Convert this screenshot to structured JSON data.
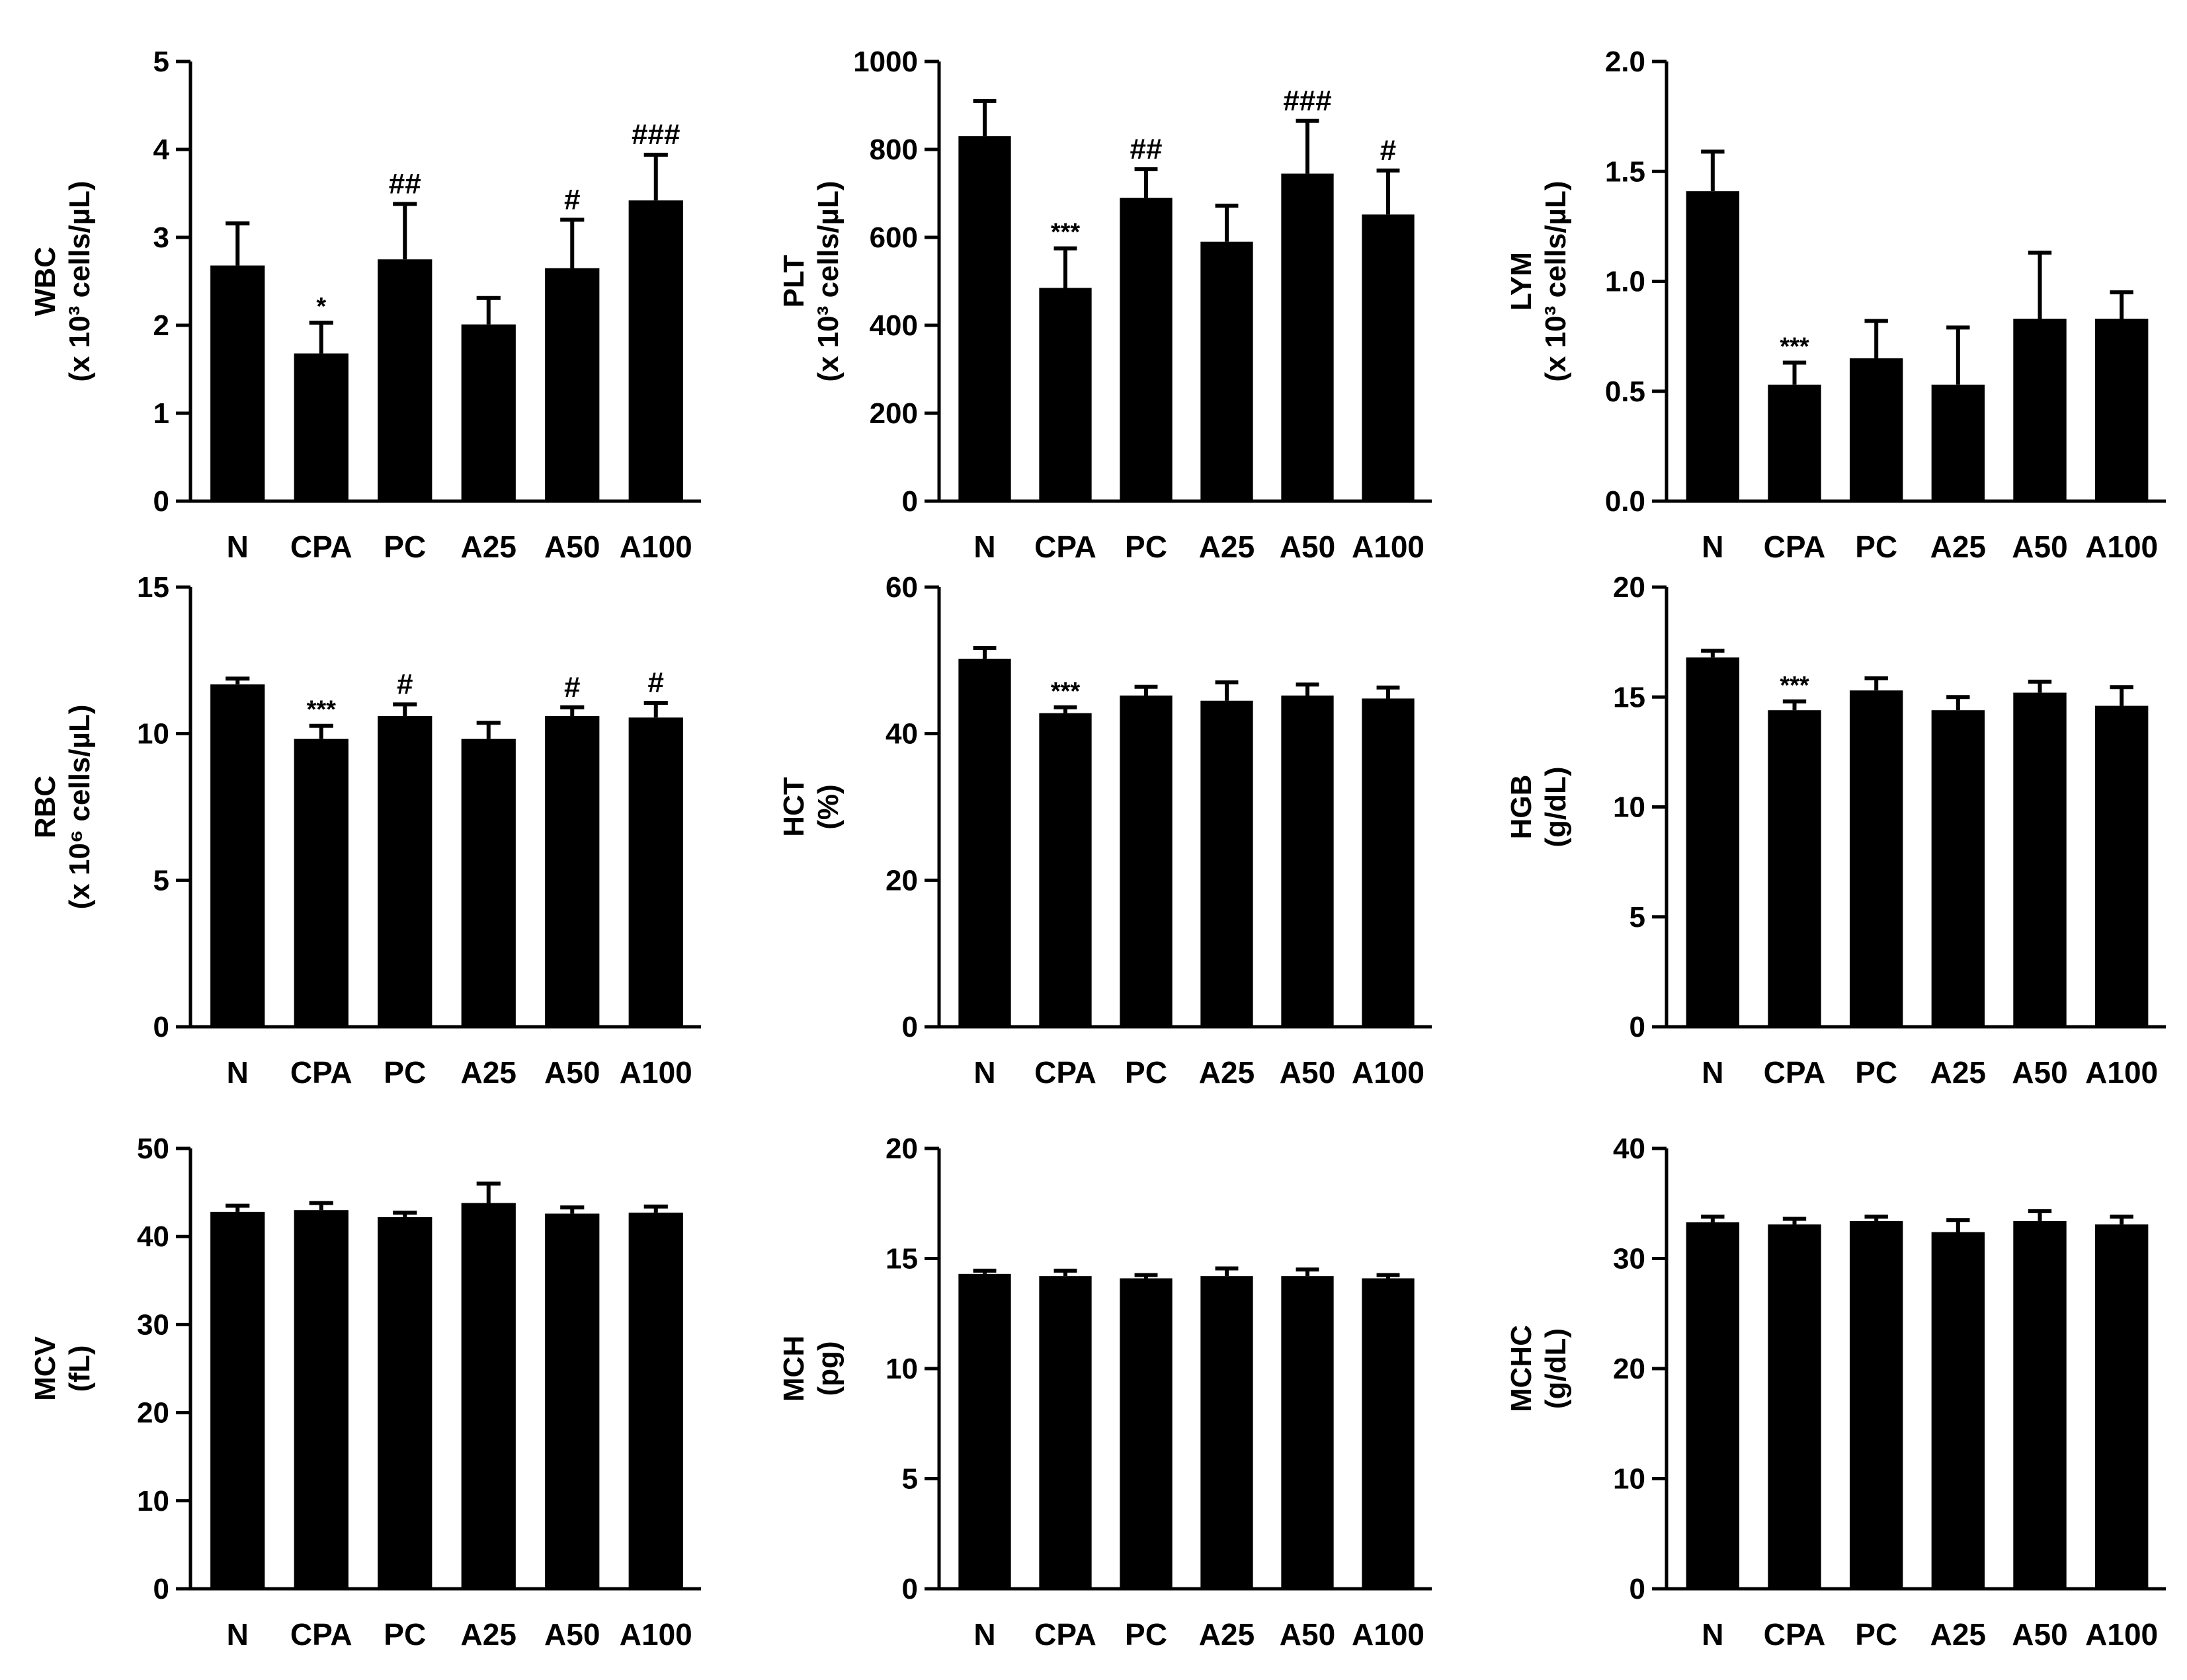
{
  "figure": {
    "bar_color": "#000000",
    "background": "#ffffff"
  },
  "chart_data": [
    {
      "type": "bar",
      "ylabel": [
        "WBC",
        "(x 10³ cells/µL)"
      ],
      "categories": [
        "N",
        "CPA",
        "PC",
        "A25",
        "A50",
        "A100"
      ],
      "values": [
        2.68,
        1.68,
        2.75,
        2.01,
        2.65,
        3.42
      ],
      "errors": [
        0.48,
        0.35,
        0.63,
        0.3,
        0.55,
        0.52
      ],
      "significance": [
        "",
        "*",
        "##",
        "",
        "#",
        "###"
      ],
      "ylim": [
        0,
        5
      ],
      "yticks": [
        0,
        1,
        2,
        3,
        4,
        5
      ]
    },
    {
      "type": "bar",
      "ylabel": [
        "PLT",
        "(x 10³ cells/µL)"
      ],
      "categories": [
        "N",
        "CPA",
        "PC",
        "A25",
        "A50",
        "A100"
      ],
      "values": [
        830,
        485,
        690,
        590,
        745,
        652
      ],
      "errors": [
        80,
        90,
        65,
        82,
        120,
        100
      ],
      "significance": [
        "",
        "***",
        "##",
        "",
        "###",
        "#"
      ],
      "ylim": [
        0,
        1000
      ],
      "yticks": [
        0,
        200,
        400,
        600,
        800,
        1000
      ]
    },
    {
      "type": "bar",
      "ylabel": [
        "LYM",
        "(x 10³ cells/µL)"
      ],
      "categories": [
        "N",
        "CPA",
        "PC",
        "A25",
        "A50",
        "A100"
      ],
      "values": [
        1.41,
        0.53,
        0.65,
        0.53,
        0.83,
        0.83
      ],
      "errors": [
        0.18,
        0.1,
        0.17,
        0.26,
        0.3,
        0.12
      ],
      "significance": [
        "",
        "***",
        "",
        "",
        "",
        ""
      ],
      "ylim": [
        0,
        2
      ],
      "yticks": [
        "0.0",
        "0.5",
        "1.0",
        "1.5",
        "2.0"
      ]
    },
    {
      "type": "bar",
      "ylabel": [
        "RBC",
        "(x 10⁶ cells/µL)"
      ],
      "categories": [
        "N",
        "CPA",
        "PC",
        "A25",
        "A50",
        "A100"
      ],
      "values": [
        11.68,
        9.82,
        10.6,
        9.82,
        10.6,
        10.55
      ],
      "errors": [
        0.2,
        0.45,
        0.4,
        0.55,
        0.3,
        0.5
      ],
      "significance": [
        "",
        "***",
        "#",
        "",
        "#",
        "#"
      ],
      "ylim": [
        0,
        15
      ],
      "yticks": [
        0,
        5,
        10,
        15
      ]
    },
    {
      "type": "bar",
      "ylabel": [
        "HCT",
        "(%)"
      ],
      "categories": [
        "N",
        "CPA",
        "PC",
        "A25",
        "A50",
        "A100"
      ],
      "values": [
        50.2,
        42.8,
        45.2,
        44.5,
        45.2,
        44.8
      ],
      "errors": [
        1.5,
        0.8,
        1.2,
        2.5,
        1.5,
        1.5
      ],
      "significance": [
        "",
        "***",
        "",
        "",
        "",
        ""
      ],
      "ylim": [
        0,
        60
      ],
      "yticks": [
        0,
        20,
        40,
        60
      ]
    },
    {
      "type": "bar",
      "ylabel": [
        "HGB",
        "(g/dL)"
      ],
      "categories": [
        "N",
        "CPA",
        "PC",
        "A25",
        "A50",
        "A100"
      ],
      "values": [
        16.8,
        14.4,
        15.3,
        14.4,
        15.2,
        14.6
      ],
      "errors": [
        0.3,
        0.4,
        0.55,
        0.6,
        0.5,
        0.85
      ],
      "significance": [
        "",
        "***",
        "",
        "",
        "",
        ""
      ],
      "ylim": [
        0,
        20
      ],
      "yticks": [
        0,
        5,
        10,
        15,
        20
      ]
    },
    {
      "type": "bar",
      "ylabel": [
        "MCV",
        "(fL)"
      ],
      "categories": [
        "N",
        "CPA",
        "PC",
        "A25",
        "A50",
        "A100"
      ],
      "values": [
        42.8,
        43.0,
        42.2,
        43.8,
        42.6,
        42.7
      ],
      "errors": [
        0.7,
        0.8,
        0.5,
        2.2,
        0.7,
        0.7
      ],
      "significance": [
        "",
        "",
        "",
        "",
        "",
        ""
      ],
      "ylim": [
        0,
        50
      ],
      "yticks": [
        0,
        10,
        20,
        30,
        40,
        50
      ]
    },
    {
      "type": "bar",
      "ylabel": [
        "MCH",
        "(pg)"
      ],
      "categories": [
        "N",
        "CPA",
        "PC",
        "A25",
        "A50",
        "A100"
      ],
      "values": [
        14.3,
        14.2,
        14.1,
        14.2,
        14.2,
        14.1
      ],
      "errors": [
        0.15,
        0.25,
        0.15,
        0.35,
        0.3,
        0.15
      ],
      "significance": [
        "",
        "",
        "",
        "",
        "",
        ""
      ],
      "ylim": [
        0,
        20
      ],
      "yticks": [
        0,
        5,
        10,
        15,
        20
      ]
    },
    {
      "type": "bar",
      "ylabel": [
        "MCHC",
        "(g/dL)"
      ],
      "categories": [
        "N",
        "CPA",
        "PC",
        "A25",
        "A50",
        "A100"
      ],
      "values": [
        33.3,
        33.1,
        33.4,
        32.4,
        33.4,
        33.1
      ],
      "errors": [
        0.5,
        0.5,
        0.4,
        1.1,
        0.9,
        0.7
      ],
      "significance": [
        "",
        "",
        "",
        "",
        "",
        ""
      ],
      "ylim": [
        0,
        40
      ],
      "yticks": [
        0,
        10,
        20,
        30,
        40
      ]
    }
  ]
}
